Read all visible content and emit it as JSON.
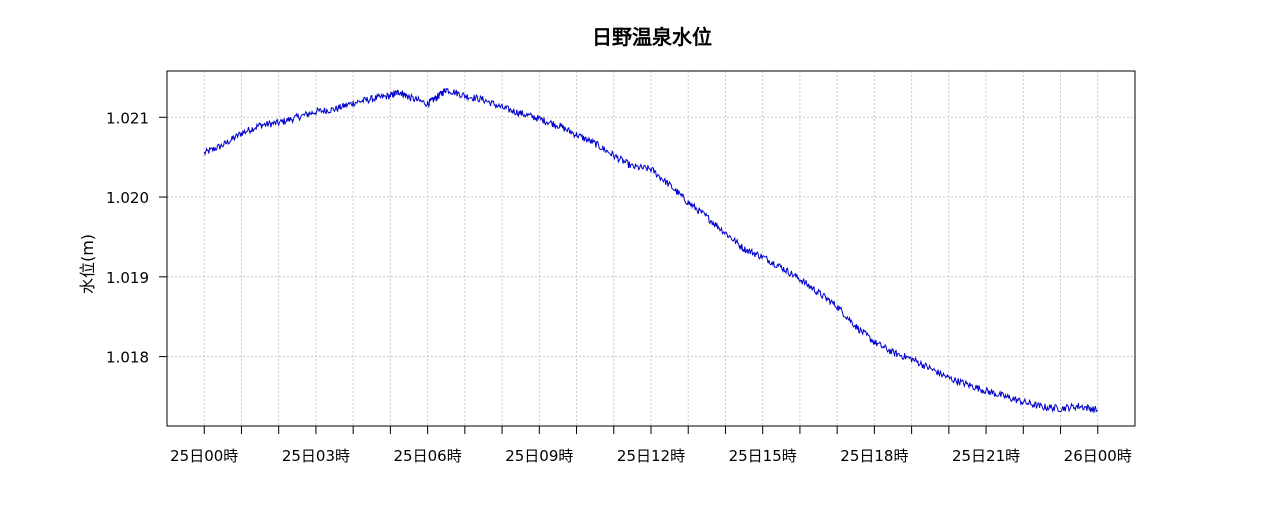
{
  "chart_data": {
    "type": "line",
    "title": "日野温泉水位",
    "xlabel": "",
    "ylabel": "水位(m)",
    "x_range": [
      -1.0,
      25.0
    ],
    "ylim": [
      1.01713,
      1.02158
    ],
    "x_ticks": [
      0,
      1,
      2,
      3,
      4,
      5,
      6,
      7,
      8,
      9,
      10,
      11,
      12,
      13,
      14,
      15,
      16,
      17,
      18,
      19,
      20,
      21,
      22,
      23,
      24
    ],
    "x_tick_labels": [
      {
        "x": 0,
        "label": "25日00時"
      },
      {
        "x": 3,
        "label": "25日03時"
      },
      {
        "x": 6,
        "label": "25日06時"
      },
      {
        "x": 9,
        "label": "25日09時"
      },
      {
        "x": 12,
        "label": "25日12時"
      },
      {
        "x": 15,
        "label": "25日15時"
      },
      {
        "x": 18,
        "label": "25日18時"
      },
      {
        "x": 21,
        "label": "25日21時"
      },
      {
        "x": 24,
        "label": "26日00時"
      }
    ],
    "y_ticks": [
      1.018,
      1.019,
      1.02,
      1.021
    ],
    "y_tick_labels": [
      "1.018",
      "1.019",
      "1.020",
      "1.021"
    ],
    "grid": true,
    "series": [
      {
        "name": "",
        "color": "#0000cc",
        "x": [
          0,
          0.5,
          1,
          1.5,
          2,
          2.5,
          3,
          3.5,
          4,
          4.5,
          5,
          5.25,
          5.5,
          6,
          6.25,
          6.5,
          7,
          7.5,
          8,
          8.5,
          9,
          9.5,
          10,
          10.5,
          11,
          11.5,
          12,
          12.5,
          13,
          13.5,
          14,
          14.5,
          15,
          15.5,
          16,
          16.5,
          17,
          17.5,
          18,
          18.5,
          19,
          19.5,
          20,
          20.5,
          21,
          21.5,
          22,
          22.5,
          23,
          23.5,
          24
        ],
        "y": [
          1.02055,
          1.02065,
          1.0208,
          1.0209,
          1.02093,
          1.021,
          1.02107,
          1.0211,
          1.02118,
          1.02123,
          1.02127,
          1.02132,
          1.02125,
          1.02117,
          1.02125,
          1.02135,
          1.02127,
          1.02122,
          1.02112,
          1.02105,
          1.02098,
          1.0209,
          1.02078,
          1.02067,
          1.02052,
          1.02038,
          1.02035,
          1.02015,
          1.01993,
          1.01975,
          1.01955,
          1.01935,
          1.01925,
          1.01912,
          1.01897,
          1.0188,
          1.01863,
          1.01838,
          1.01818,
          1.01805,
          1.01797,
          1.01785,
          1.01773,
          1.01765,
          1.01757,
          1.0175,
          1.01743,
          1.01737,
          1.01735,
          1.01738,
          1.01733
        ]
      }
    ]
  }
}
